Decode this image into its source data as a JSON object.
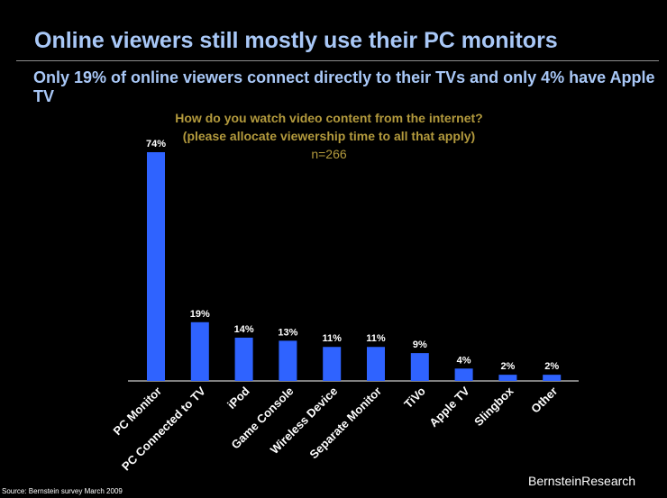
{
  "header": {
    "title": "Online viewers still mostly use their PC monitors",
    "subtitle": "Only 19% of online viewers connect directly to their TVs and only 4% have Apple TV"
  },
  "chart_question": {
    "line1": "How do you watch video content from the internet?",
    "line2": "(please allocate viewership time to all that apply)",
    "n": "n=266"
  },
  "footer": {
    "source": "Source: Bernstein survey March 2009",
    "brand": "BernsteinResearch"
  },
  "colors": {
    "bar": "#2f63ff",
    "title": "#a9c8f7",
    "question": "#b39a3d"
  },
  "chart_data": {
    "type": "bar",
    "title": "How do you watch video content from the internet? (please allocate viewership time to all that apply)",
    "categories": [
      "PC Monitor",
      "PC Connected to TV",
      "iPod",
      "Game Console",
      "Wireless Device",
      "Separate Monitor",
      "TiVo",
      "Apple TV",
      "Slingbox",
      "Other"
    ],
    "values": [
      74,
      19,
      14,
      13,
      11,
      11,
      9,
      4,
      2,
      2
    ],
    "value_labels": [
      "74%",
      "19%",
      "14%",
      "13%",
      "11%",
      "11%",
      "9%",
      "4%",
      "2%",
      "2%"
    ],
    "xlabel": "",
    "ylabel": "",
    "ylim": [
      0,
      74
    ],
    "grid": false,
    "legend": "none"
  }
}
